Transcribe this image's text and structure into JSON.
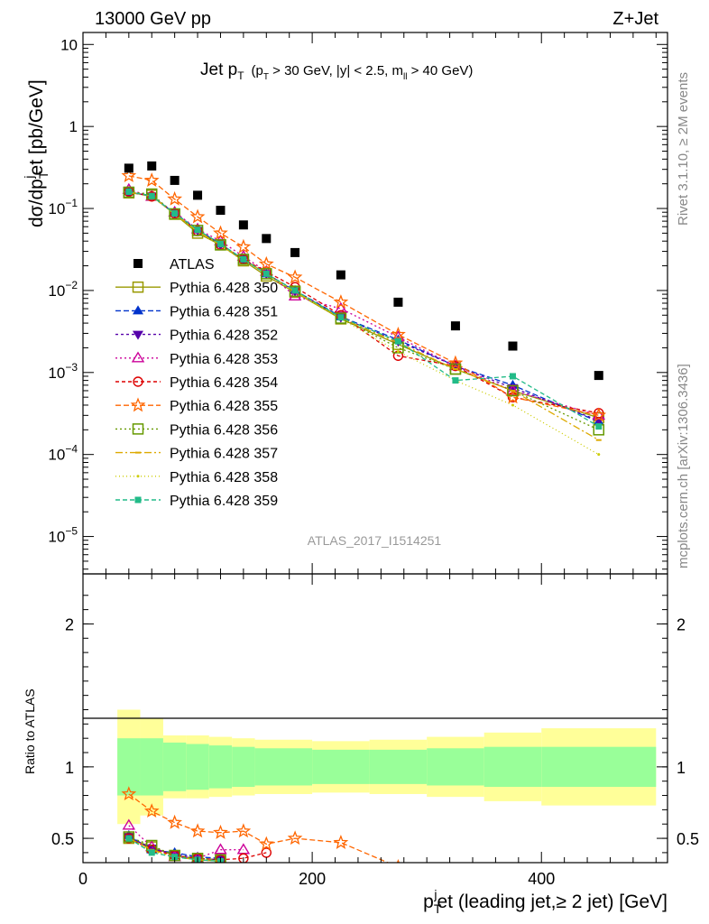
{
  "header": {
    "left": "13000 GeV pp",
    "right": "Z+Jet"
  },
  "plot_title": {
    "main": "Jet p",
    "main_sub": "T",
    "cut_1": "(p",
    "cut_1_sub": "T",
    "cut_2": " > 30 GeV, |y| < 2.5, m",
    "cut_2_sub": "ll",
    "cut_3": " > 40 GeV)"
  },
  "side_labels": {
    "right_top": "Rivet 3.1.10, ≥ 2M events",
    "right_bottom": "mcplots.cern.ch [arXiv:1306.3436]"
  },
  "analysis_id": "ATLAS_2017_I1514251",
  "axes": {
    "y_main": "dσ/dp",
    "y_main_sub": "T",
    "y_main_sup": "j",
    "y_main_tail": "et [pb/GeV]",
    "y_ratio": "Ratio to ATLAS",
    "x_pre": "p",
    "x_sub": "T",
    "x_sup": "j",
    "x_tail": "et (leading jet,≥ 2 jet) [GeV]"
  },
  "ticks": {
    "main_y": [
      {
        "v": 10,
        "label": "10"
      },
      {
        "v": 1,
        "label": "1"
      },
      {
        "v": 0.1,
        "base": "10",
        "exp": "−1"
      },
      {
        "v": 0.01,
        "base": "10",
        "exp": "−2"
      },
      {
        "v": 0.001,
        "base": "10",
        "exp": "−3"
      },
      {
        "v": 0.0001,
        "base": "10",
        "exp": "−4"
      },
      {
        "v": 1e-05,
        "base": "10",
        "exp": "−5"
      }
    ],
    "ratio_y": [
      {
        "v": 2,
        "label": "2"
      },
      {
        "v": 1,
        "label": "1"
      },
      {
        "v": 0.5,
        "label": "0.5"
      }
    ],
    "x": [
      {
        "v": 0,
        "label": "0"
      },
      {
        "v": 200,
        "label": "200"
      },
      {
        "v": 400,
        "label": "400"
      }
    ]
  },
  "colors": {
    "data": "#000000",
    "band_inner": "#99ff99",
    "band_outer": "#ffff99"
  },
  "chart_data": {
    "type": "scatter",
    "x_range": [
      0,
      510
    ],
    "y_range_main": [
      3.5e-06,
      14
    ],
    "y_scale_main": "log",
    "y_range_ratio": [
      0.33,
      2.35
    ],
    "legend_position": "left-middle",
    "bins": [
      {
        "x": 40,
        "lo": 30,
        "hi": 50
      },
      {
        "x": 60,
        "lo": 50,
        "hi": 70
      },
      {
        "x": 80,
        "lo": 70,
        "hi": 90
      },
      {
        "x": 100,
        "lo": 90,
        "hi": 110
      },
      {
        "x": 120,
        "lo": 110,
        "hi": 130
      },
      {
        "x": 140,
        "lo": 130,
        "hi": 150
      },
      {
        "x": 160,
        "lo": 150,
        "hi": 170
      },
      {
        "x": 185,
        "lo": 170,
        "hi": 200
      },
      {
        "x": 225,
        "lo": 200,
        "hi": 250
      },
      {
        "x": 275,
        "lo": 250,
        "hi": 300
      },
      {
        "x": 325,
        "lo": 300,
        "hi": 350
      },
      {
        "x": 375,
        "lo": 350,
        "hi": 400
      },
      {
        "x": 450,
        "lo": 400,
        "hi": 500
      }
    ],
    "data": {
      "name": "ATLAS",
      "values": [
        0.31,
        0.33,
        0.22,
        0.145,
        0.095,
        0.063,
        0.043,
        0.029,
        0.0155,
        0.0072,
        0.0037,
        0.0021,
        0.00092
      ]
    },
    "bands": {
      "inner": [
        0.2,
        0.2,
        0.17,
        0.16,
        0.15,
        0.14,
        0.13,
        0.13,
        0.12,
        0.12,
        0.13,
        0.14,
        0.14
      ],
      "outer": [
        0.4,
        0.34,
        0.22,
        0.22,
        0.21,
        0.2,
        0.19,
        0.19,
        0.18,
        0.19,
        0.21,
        0.24,
        0.27
      ]
    },
    "series": [
      {
        "name": "Pythia 6.428 350",
        "color": "#999900",
        "marker": "open-square",
        "dash": "",
        "values": [
          0.155,
          0.145,
          0.085,
          0.05,
          0.036,
          0.023,
          0.015,
          0.0095,
          0.0045,
          0.0022,
          0.0011,
          0.0006,
          0.00028
        ],
        "ratio": [
          0.5,
          0.44,
          0.38,
          0.35,
          0.34
        ]
      },
      {
        "name": "Pythia 6.428 351",
        "color": "#0033cc",
        "marker": "triangle-up",
        "dash": "6,3",
        "values": [
          0.16,
          0.14,
          0.088,
          0.055,
          0.037,
          0.024,
          0.016,
          0.01,
          0.0048,
          0.0025,
          0.0012,
          0.0007,
          0.00025
        ],
        "ratio": [
          0.52,
          0.42,
          0.4,
          0.37,
          0.36
        ]
      },
      {
        "name": "Pythia 6.428 352",
        "color": "#5500aa",
        "marker": "triangle-down",
        "dash": "3,3",
        "values": [
          0.158,
          0.142,
          0.087,
          0.054,
          0.036,
          0.024,
          0.016,
          0.0098,
          0.0047,
          0.0024,
          0.0012,
          0.00065,
          0.00026
        ],
        "ratio": [
          0.51,
          0.43,
          0.39,
          0.36,
          0.35
        ]
      },
      {
        "name": "Pythia 6.428 353",
        "color": "#cc0099",
        "marker": "open-triangle-up",
        "dash": "2,3",
        "values": [
          0.17,
          0.14,
          0.09,
          0.056,
          0.04,
          0.026,
          0.017,
          0.0085,
          0.006,
          0.0027,
          0.0012,
          0.0006,
          0.0003
        ],
        "ratio": [
          0.59,
          0.44,
          0.37,
          0.36,
          0.42,
          0.42
        ]
      },
      {
        "name": "Pythia 6.428 354",
        "color": "#dd0000",
        "marker": "open-circle",
        "dash": "4,3",
        "values": [
          0.16,
          0.14,
          0.087,
          0.053,
          0.036,
          0.024,
          0.017,
          0.011,
          0.005,
          0.0016,
          0.0012,
          0.0005,
          0.00032
        ],
        "ratio": [
          0.5,
          0.42,
          0.38,
          0.36,
          0.35,
          0.36,
          0.4
        ]
      },
      {
        "name": "Pythia 6.428 355",
        "color": "#ff6600",
        "marker": "open-star",
        "dash": "6,3",
        "values": [
          0.25,
          0.22,
          0.13,
          0.079,
          0.05,
          0.034,
          0.021,
          0.0145,
          0.0072,
          0.0029,
          0.0013,
          0.0005,
          0.0003
        ],
        "ratio": [
          0.81,
          0.69,
          0.61,
          0.55,
          0.54,
          0.55,
          0.46,
          0.5,
          0.47,
          0.3
        ]
      },
      {
        "name": "Pythia 6.428 356",
        "color": "#669900",
        "marker": "open-square",
        "dash": "2,3",
        "values": [
          0.158,
          0.15,
          0.086,
          0.054,
          0.036,
          0.024,
          0.016,
          0.0098,
          0.0046,
          0.002,
          0.0011,
          0.0006,
          0.0002
        ],
        "ratio": [
          0.51,
          0.45,
          0.38,
          0.36,
          0.35
        ]
      },
      {
        "name": "Pythia 6.428 357",
        "color": "#ddaa00",
        "marker": "dash",
        "dash": "8,3,2,3",
        "values": [
          0.158,
          0.142,
          0.086,
          0.053,
          0.036,
          0.024,
          0.016,
          0.0097,
          0.0046,
          0.0023,
          0.0011,
          0.0006,
          0.00015
        ],
        "ratio": [
          0.5,
          0.42,
          0.37,
          0.35,
          0.34
        ]
      },
      {
        "name": "Pythia 6.428 358",
        "color": "#cccc00",
        "marker": "dot",
        "dash": "1,3",
        "values": [
          0.156,
          0.14,
          0.085,
          0.052,
          0.035,
          0.023,
          0.016,
          0.0096,
          0.0045,
          0.0018,
          0.0008,
          0.0004,
          0.0001
        ],
        "ratio": [
          0.5,
          0.41,
          0.37,
          0.35,
          0.34
        ]
      },
      {
        "name": "Pythia 6.428 359",
        "color": "#22bb88",
        "marker": "filled-square",
        "dash": "5,3",
        "values": [
          0.16,
          0.142,
          0.087,
          0.055,
          0.037,
          0.024,
          0.016,
          0.01,
          0.0047,
          0.0024,
          0.0008,
          0.0009,
          0.00022
        ],
        "ratio": [
          0.5,
          0.4,
          0.37,
          0.35,
          0.34
        ]
      }
    ]
  }
}
